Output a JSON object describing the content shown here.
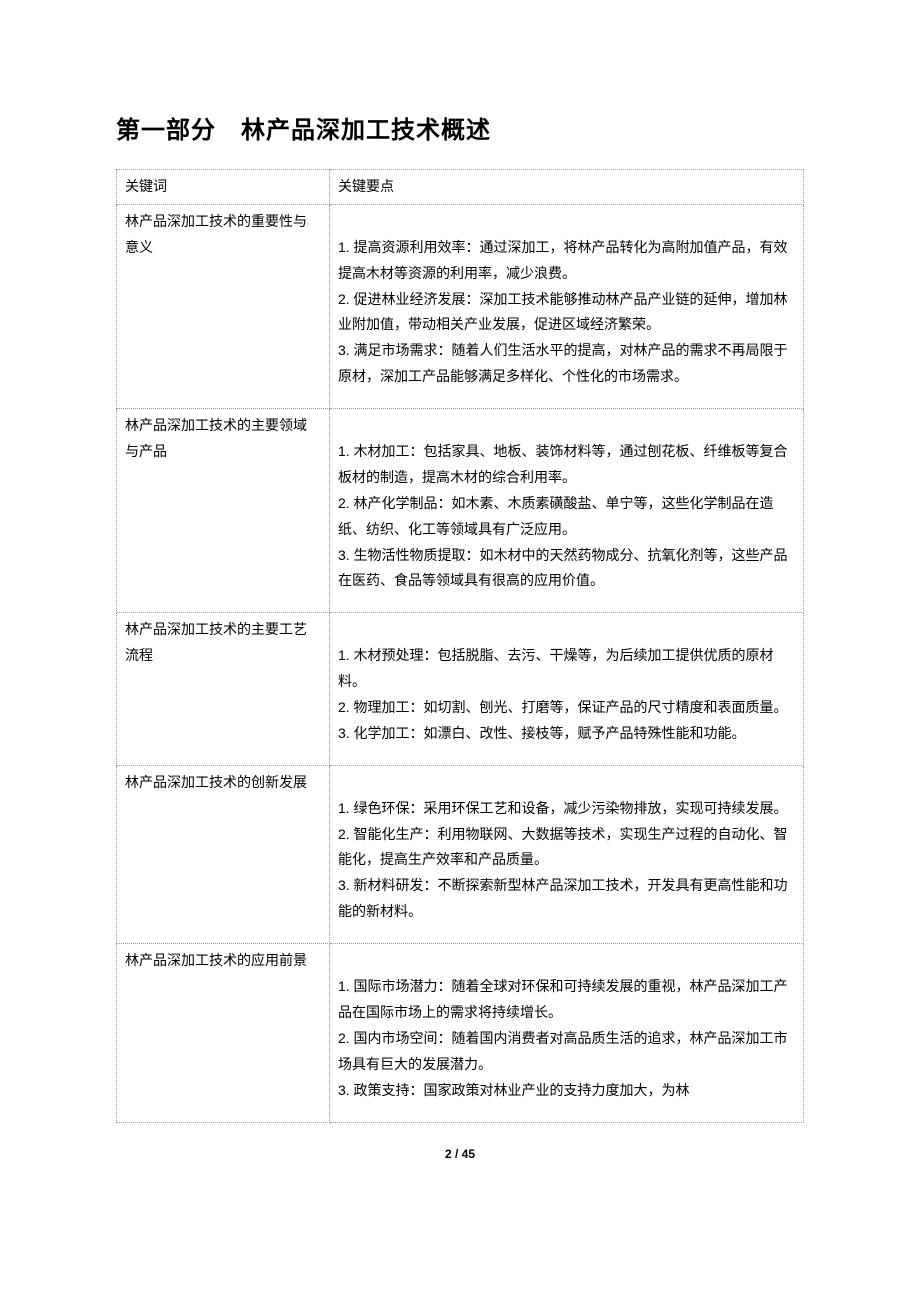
{
  "title": "第一部分　林产品深加工技术概述",
  "table": {
    "headers": {
      "keyword": "关键词",
      "points": "关键要点"
    },
    "rows": [
      {
        "keyword": "林产品深加工技术的重要性与意义",
        "points": "\n1. 提高资源利用效率：通过深加工，将林产品转化为高附加值产品，有效提高木材等资源的利用率，减少浪费。\n2. 促进林业经济发展：深加工技术能够推动林产品产业链的延伸，增加林业附加值，带动相关产业发展，促进区域经济繁荣。\n3. 满足市场需求：随着人们生活水平的提高，对林产品的需求不再局限于原材，深加工产品能够满足多样化、个性化的市场需求。\n"
      },
      {
        "keyword": "林产品深加工技术的主要领域与产品",
        "points": "\n1. 木材加工：包括家具、地板、装饰材料等，通过刨花板、纤维板等复合板材的制造，提高木材的综合利用率。\n2. 林产化学制品：如木素、木质素磺酸盐、单宁等，这些化学制品在造纸、纺织、化工等领域具有广泛应用。\n3. 生物活性物质提取：如木材中的天然药物成分、抗氧化剂等，这些产品在医药、食品等领域具有很高的应用价值。\n"
      },
      {
        "keyword": "林产品深加工技术的主要工艺流程",
        "points": "\n1. 木材预处理：包括脱脂、去污、干燥等，为后续加工提供优质的原材料。\n2. 物理加工：如切割、刨光、打磨等，保证产品的尺寸精度和表面质量。\n3. 化学加工：如漂白、改性、接枝等，赋予产品特殊性能和功能。\n"
      },
      {
        "keyword": "林产品深加工技术的创新发展",
        "points": "\n1. 绿色环保：采用环保工艺和设备，减少污染物排放，实现可持续发展。\n2. 智能化生产：利用物联网、大数据等技术，实现生产过程的自动化、智能化，提高生产效率和产品质量。\n3. 新材料研发：不断探索新型林产品深加工技术，开发具有更高性能和功能的新材料。\n"
      },
      {
        "keyword": "林产品深加工技术的应用前景",
        "points": "\n1. 国际市场潜力：随着全球对环保和可持续发展的重视，林产品深加工产品在国际市场上的需求将持续增长。\n2. 国内市场空间：随着国内消费者对高品质生活的追求，林产品深加工市场具有巨大的发展潜力。\n3. 政策支持：国家政策对林业产业的支持力度加大，为林"
      }
    ]
  },
  "pageNumber": "2 / 45"
}
